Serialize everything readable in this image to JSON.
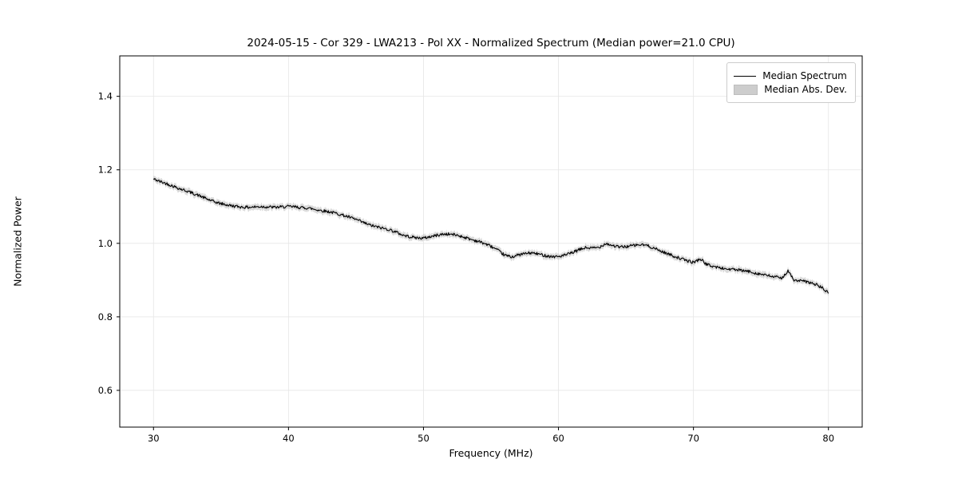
{
  "chart_data": {
    "type": "line",
    "title": "2024-05-15 - Cor 329 - LWA213 - Pol XX - Normalized Spectrum (Median power=21.0 CPU)",
    "xlabel": "Frequency (MHz)",
    "ylabel": "Normalized Power",
    "xlim": [
      27.5,
      82.5
    ],
    "ylim": [
      0.5,
      1.51
    ],
    "xticks": [
      30,
      40,
      50,
      60,
      70,
      80
    ],
    "yticks": [
      0.6,
      0.8,
      1.0,
      1.2,
      1.4
    ],
    "grid": true,
    "grid_color": "#e6e6e6",
    "line_color": "#000000",
    "band_color": "#bbbbbb",
    "band_halfwidth": 0.008,
    "noise_amplitude": 0.004,
    "legend": {
      "position": "upper right",
      "entries": [
        {
          "label": "Median Spectrum",
          "type": "line",
          "color": "#000000"
        },
        {
          "label": "Median Abs. Dev.",
          "type": "band",
          "color": "#c8c8c8"
        }
      ]
    },
    "series": [
      {
        "name": "Median Spectrum",
        "x": [
          30.0,
          30.5,
          31.0,
          31.5,
          32.0,
          32.5,
          33.0,
          33.5,
          34.0,
          34.5,
          35.0,
          35.5,
          36.0,
          36.5,
          37.0,
          37.5,
          38.0,
          38.5,
          39.0,
          39.5,
          40.0,
          40.5,
          41.0,
          41.5,
          42.0,
          42.5,
          43.0,
          43.5,
          44.0,
          44.5,
          45.0,
          45.5,
          46.0,
          46.5,
          47.0,
          47.5,
          48.0,
          48.5,
          49.0,
          49.5,
          50.0,
          50.5,
          51.0,
          51.5,
          52.0,
          52.5,
          53.0,
          53.5,
          54.0,
          54.5,
          55.0,
          55.5,
          56.0,
          56.5,
          57.0,
          57.5,
          58.0,
          58.5,
          59.0,
          59.5,
          60.0,
          60.5,
          61.0,
          61.5,
          62.0,
          62.5,
          63.0,
          63.5,
          64.0,
          64.5,
          65.0,
          65.5,
          66.0,
          66.5,
          67.0,
          67.5,
          68.0,
          68.5,
          69.0,
          69.5,
          70.0,
          70.5,
          71.0,
          71.5,
          72.0,
          72.5,
          73.0,
          73.5,
          74.0,
          74.5,
          75.0,
          75.5,
          76.0,
          76.5,
          77.0,
          77.5,
          78.0,
          78.5,
          79.0,
          79.5,
          80.0
        ],
        "y": [
          1.175,
          1.168,
          1.162,
          1.155,
          1.148,
          1.142,
          1.135,
          1.128,
          1.12,
          1.113,
          1.108,
          1.104,
          1.101,
          1.099,
          1.098,
          1.099,
          1.1,
          1.099,
          1.098,
          1.099,
          1.1,
          1.099,
          1.097,
          1.096,
          1.092,
          1.089,
          1.086,
          1.082,
          1.077,
          1.071,
          1.065,
          1.057,
          1.05,
          1.045,
          1.041,
          1.037,
          1.03,
          1.022,
          1.018,
          1.015,
          1.014,
          1.018,
          1.022,
          1.025,
          1.025,
          1.022,
          1.017,
          1.011,
          1.006,
          1.0,
          0.992,
          0.981,
          0.968,
          0.963,
          0.968,
          0.972,
          0.974,
          0.971,
          0.967,
          0.964,
          0.964,
          0.968,
          0.974,
          0.982,
          0.988,
          0.987,
          0.989,
          1.0,
          0.994,
          0.99,
          0.991,
          0.994,
          0.996,
          0.995,
          0.988,
          0.98,
          0.973,
          0.966,
          0.959,
          0.953,
          0.948,
          0.958,
          0.942,
          0.937,
          0.933,
          0.93,
          0.929,
          0.926,
          0.924,
          0.92,
          0.916,
          0.912,
          0.909,
          0.905,
          0.924,
          0.898,
          0.898,
          0.894,
          0.889,
          0.88,
          0.864
        ]
      }
    ]
  }
}
